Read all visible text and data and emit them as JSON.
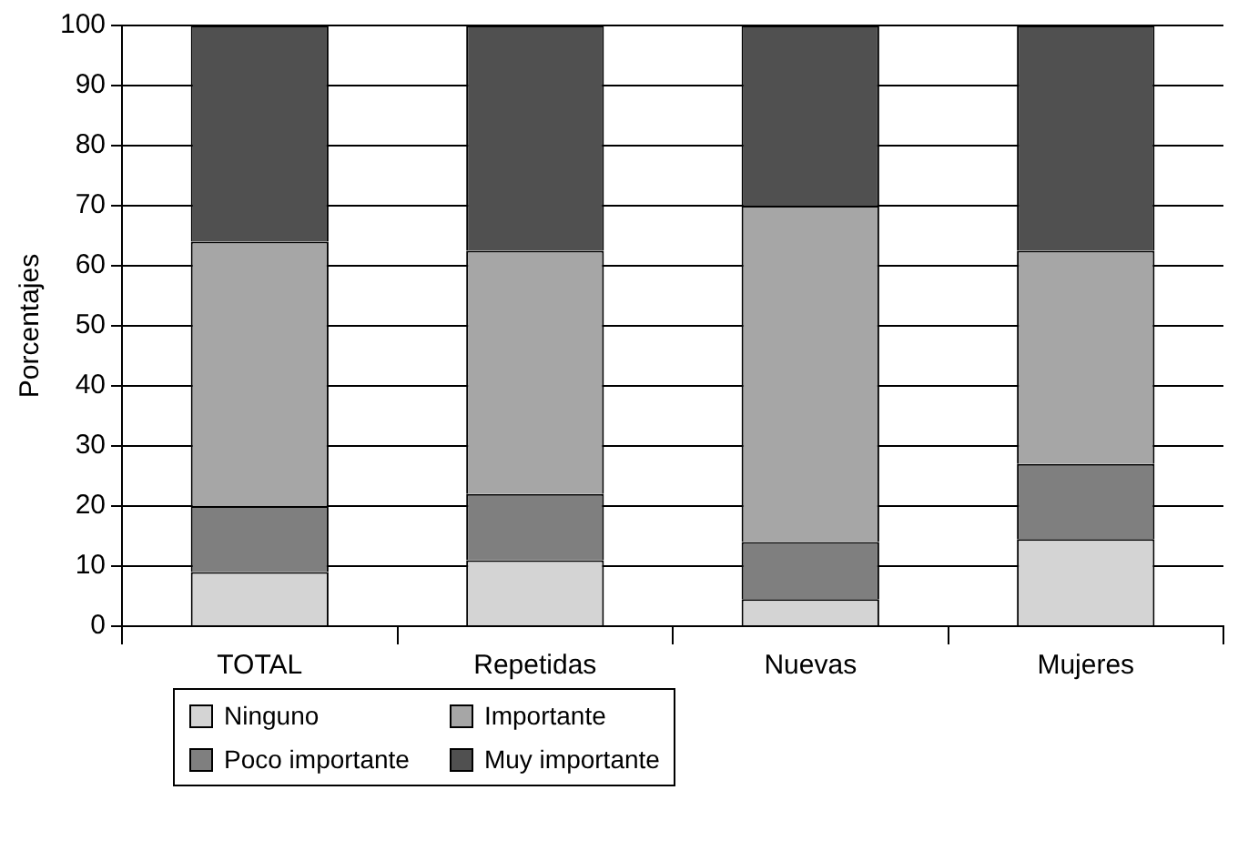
{
  "chart_data": {
    "type": "bar",
    "stacked": true,
    "ylabel": "Porcentajes",
    "categories": [
      "TOTAL",
      "Repetidas",
      "Nuevas",
      "Mujeres"
    ],
    "series": [
      {
        "name": "Ninguno",
        "color": "#d4d4d4",
        "values": [
          9,
          11,
          4.5,
          14.5
        ]
      },
      {
        "name": "Poco importante",
        "color": "#7f7f7f",
        "values": [
          11,
          11,
          9.5,
          12.5
        ]
      },
      {
        "name": "Importante",
        "color": "#a6a6a6",
        "values": [
          44,
          40.5,
          56,
          35.5
        ]
      },
      {
        "name": "Muy importante",
        "color": "#505050",
        "values": [
          36,
          37.5,
          30,
          37.5
        ]
      }
    ],
    "ylim": [
      0,
      100
    ],
    "yticks": [
      0,
      10,
      20,
      30,
      40,
      50,
      60,
      70,
      80,
      90,
      100
    ],
    "grid": "y",
    "legend": "bottom"
  }
}
